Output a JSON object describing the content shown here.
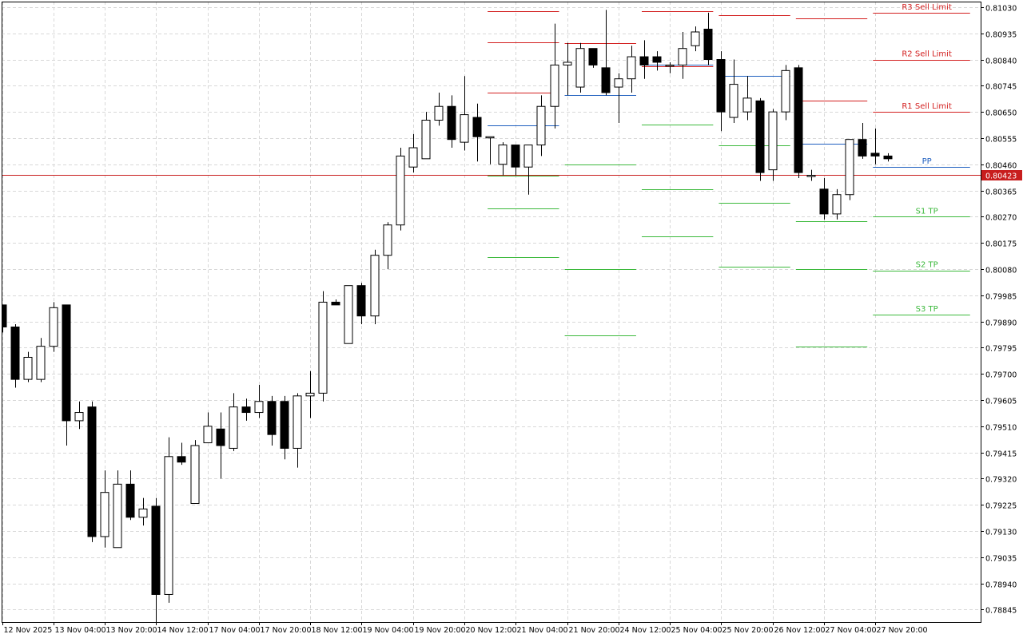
{
  "chart_data": {
    "type": "candlestick",
    "title": "",
    "ylim": [
      0.788,
      0.8105
    ],
    "grid": true,
    "y_ticks": [
      0.8103,
      0.80935,
      0.8084,
      0.80745,
      0.8065,
      0.80555,
      0.8046,
      0.80365,
      0.8027,
      0.80175,
      0.8008,
      0.79985,
      0.7989,
      0.79795,
      0.797,
      0.79605,
      0.7951,
      0.79415,
      0.7932,
      0.79225,
      0.7913,
      0.79035,
      0.7894,
      0.78845
    ],
    "x_ticks": [
      {
        "bar": 0,
        "label": "12 Nov 2025"
      },
      {
        "bar": 4,
        "label": "13 Nov 04:00"
      },
      {
        "bar": 8,
        "label": "13 Nov 20:00"
      },
      {
        "bar": 12,
        "label": "14 Nov 12:00"
      },
      {
        "bar": 16,
        "label": "17 Nov 04:00"
      },
      {
        "bar": 20,
        "label": "17 Nov 20:00"
      },
      {
        "bar": 24,
        "label": "18 Nov 12:00"
      },
      {
        "bar": 28,
        "label": "19 Nov 04:00"
      },
      {
        "bar": 32,
        "label": "19 Nov 20:00"
      },
      {
        "bar": 36,
        "label": "20 Nov 12:00"
      },
      {
        "bar": 40,
        "label": "21 Nov 04:00"
      },
      {
        "bar": 44,
        "label": "21 Nov 20:00"
      },
      {
        "bar": 48,
        "label": "24 Nov 12:00"
      },
      {
        "bar": 52,
        "label": "25 Nov 04:00"
      },
      {
        "bar": 56,
        "label": "25 Nov 20:00"
      },
      {
        "bar": 60,
        "label": "26 Nov 12:00"
      },
      {
        "bar": 64,
        "label": "27 Nov 04:00"
      },
      {
        "bar": 68,
        "label": "27 Nov 20:00"
      }
    ],
    "current_price": "0.80423",
    "candles": [
      [
        0.7995,
        0.7995,
        0.7985,
        0.7987
      ],
      [
        0.7987,
        0.7988,
        0.7965,
        0.7968
      ],
      [
        0.7968,
        0.7978,
        0.7967,
        0.7976
      ],
      [
        0.7968,
        0.7983,
        0.7967,
        0.798
      ],
      [
        0.798,
        0.7996,
        0.7978,
        0.7994
      ],
      [
        0.7995,
        0.7995,
        0.7944,
        0.7953
      ],
      [
        0.7953,
        0.796,
        0.795,
        0.7956
      ],
      [
        0.7958,
        0.796,
        0.7909,
        0.7911
      ],
      [
        0.7911,
        0.7935,
        0.7907,
        0.7927
      ],
      [
        0.7907,
        0.7935,
        0.7907,
        0.793
      ],
      [
        0.793,
        0.7935,
        0.7917,
        0.7918
      ],
      [
        0.7918,
        0.7925,
        0.7915,
        0.7921
      ],
      [
        0.7922,
        0.7925,
        0.7873,
        0.789
      ],
      [
        0.789,
        0.7947,
        0.7887,
        0.794
      ],
      [
        0.794,
        0.7945,
        0.7937,
        0.7938
      ],
      [
        0.7923,
        0.7946,
        0.7923,
        0.7944
      ],
      [
        0.7945,
        0.7956,
        0.7945,
        0.7951
      ],
      [
        0.795,
        0.7956,
        0.7932,
        0.7944
      ],
      [
        0.7943,
        0.7963,
        0.7942,
        0.7958
      ],
      [
        0.7958,
        0.7961,
        0.7953,
        0.7956
      ],
      [
        0.7956,
        0.7966,
        0.7954,
        0.796
      ],
      [
        0.796,
        0.7962,
        0.7944,
        0.7948
      ],
      [
        0.796,
        0.7962,
        0.7939,
        0.7943
      ],
      [
        0.7943,
        0.7963,
        0.7936,
        0.7962
      ],
      [
        0.7962,
        0.7971,
        0.7954,
        0.7963
      ],
      [
        0.7963,
        0.8,
        0.796,
        0.7996
      ],
      [
        0.7996,
        0.7997,
        0.7995,
        0.7995
      ],
      [
        0.7981,
        0.8002,
        0.7981,
        0.8002
      ],
      [
        0.8002,
        0.8003,
        0.7988,
        0.7991
      ],
      [
        0.7991,
        0.8015,
        0.7988,
        0.8013
      ],
      [
        0.8013,
        0.8025,
        0.8008,
        0.8024
      ],
      [
        0.8024,
        0.8052,
        0.8022,
        0.8049
      ],
      [
        0.8045,
        0.8057,
        0.8043,
        0.8052
      ],
      [
        0.8048,
        0.8065,
        0.8048,
        0.8062
      ],
      [
        0.8062,
        0.8072,
        0.806,
        0.8067
      ],
      [
        0.8067,
        0.8071,
        0.8052,
        0.8055
      ],
      [
        0.8054,
        0.8078,
        0.8051,
        0.8064
      ],
      [
        0.8063,
        0.8068,
        0.8047,
        0.8056
      ],
      [
        0.8056,
        0.8056,
        0.8046,
        0.8056
      ],
      [
        0.8046,
        0.8054,
        0.8042,
        0.8053
      ],
      [
        0.8053,
        0.8053,
        0.8042,
        0.8045
      ],
      [
        0.8045,
        0.8053,
        0.8035,
        0.8053
      ],
      [
        0.8053,
        0.8071,
        0.8049,
        0.8067
      ],
      [
        0.8067,
        0.8097,
        0.8059,
        0.8082
      ],
      [
        0.8082,
        0.809,
        0.8071,
        0.8083
      ],
      [
        0.8074,
        0.809,
        0.8072,
        0.8088
      ],
      [
        0.8088,
        0.8088,
        0.8081,
        0.8082
      ],
      [
        0.8081,
        0.8102,
        0.8071,
        0.8072
      ],
      [
        0.8074,
        0.8079,
        0.8061,
        0.8077
      ],
      [
        0.8077,
        0.8089,
        0.8072,
        0.8085
      ],
      [
        0.8085,
        0.8091,
        0.8077,
        0.8082
      ],
      [
        0.8085,
        0.8087,
        0.808,
        0.8083
      ],
      [
        0.8082,
        0.8083,
        0.8079,
        0.8082
      ],
      [
        0.8082,
        0.8094,
        0.8077,
        0.8088
      ],
      [
        0.8089,
        0.8096,
        0.8087,
        0.8094
      ],
      [
        0.8095,
        0.8101,
        0.8082,
        0.8084
      ],
      [
        0.8084,
        0.8087,
        0.8058,
        0.8065
      ],
      [
        0.8063,
        0.8084,
        0.8061,
        0.8075
      ],
      [
        0.8065,
        0.8078,
        0.8062,
        0.807
      ],
      [
        0.8069,
        0.807,
        0.804,
        0.8043
      ],
      [
        0.8044,
        0.8066,
        0.804,
        0.8065
      ],
      [
        0.8065,
        0.8082,
        0.8062,
        0.808
      ],
      [
        0.8081,
        0.8082,
        0.8041,
        0.8043
      ],
      [
        0.8042,
        0.8044,
        0.804,
        0.8042
      ],
      [
        0.8037,
        0.8041,
        0.8026,
        0.8028
      ],
      [
        0.8028,
        0.8037,
        0.8026,
        0.8035
      ],
      [
        0.8035,
        0.8055,
        0.8033,
        0.8055
      ],
      [
        0.8055,
        0.8061,
        0.8048,
        0.8049
      ],
      [
        0.805,
        0.8059,
        0.8046,
        0.8049
      ],
      [
        0.8049,
        0.805,
        0.8047,
        0.8048
      ]
    ],
    "level_segments": [
      {
        "from": 38,
        "to": 43,
        "r3": 0.81015,
        "r2": 0.80902,
        "r1": 0.8072,
        "pp": 0.806,
        "s1": 0.8042,
        "s2": 0.803,
        "s3": 0.80122
      },
      {
        "from": 44,
        "to": 49,
        "r3": null,
        "r2": 0.80898,
        "r1": 0.8071,
        "pp": 0.8071,
        "s1": 0.8046,
        "s2": 0.8008,
        "s3": 0.7984
      },
      {
        "from": 50,
        "to": 55,
        "r3": 0.81015,
        "r2": null,
        "r1": 0.80815,
        "pp": 0.8082,
        "s1": 0.80605,
        "s2": 0.8037,
        "s3": 0.802
      },
      {
        "from": 56,
        "to": 61,
        "r3": 0.81,
        "r2": null,
        "r1": null,
        "pp": 0.8078,
        "s1": 0.8053,
        "s2": 0.8032,
        "s3": 0.8009
      },
      {
        "from": 62,
        "to": 67,
        "r3": 0.8099,
        "r2": null,
        "r1": 0.8069,
        "pp": 0.80535,
        "s1": 0.80255,
        "s2": 0.8008,
        "s3": 0.798
      },
      {
        "from": 68,
        "to": 75,
        "r3": 0.8101,
        "r2": 0.8084,
        "r1": 0.8065,
        "pp": 0.8045,
        "s1": 0.8027,
        "s2": 0.80075,
        "s3": 0.79915
      }
    ],
    "level_labels": [
      {
        "key": "r3",
        "text": "R3 Sell Limit",
        "color": "#d31f1f"
      },
      {
        "key": "r2",
        "text": "R2 Sell Limit",
        "color": "#d31f1f"
      },
      {
        "key": "r1",
        "text": "R1 Sell Limit",
        "color": "#d31f1f"
      },
      {
        "key": "pp",
        "text": "PP",
        "color": "#1f5fbf"
      },
      {
        "key": "s1",
        "text": "S1 TP",
        "color": "#3cb93c"
      },
      {
        "key": "s2",
        "text": "S2 TP",
        "color": "#3cb93c"
      },
      {
        "key": "s3",
        "text": "S3 TP",
        "color": "#3cb93c"
      }
    ],
    "colors": {
      "bull_body": "#ffffff",
      "bear_body": "#000000",
      "candle_outline": "#000000",
      "grid": "#d8d8d8",
      "price_line": "#c81e1e",
      "price_tag_bg": "#c81e1e",
      "price_tag_text": "#ffffff",
      "resistance": "#d31f1f",
      "pivot": "#1f5fbf",
      "support": "#3cb93c"
    }
  }
}
